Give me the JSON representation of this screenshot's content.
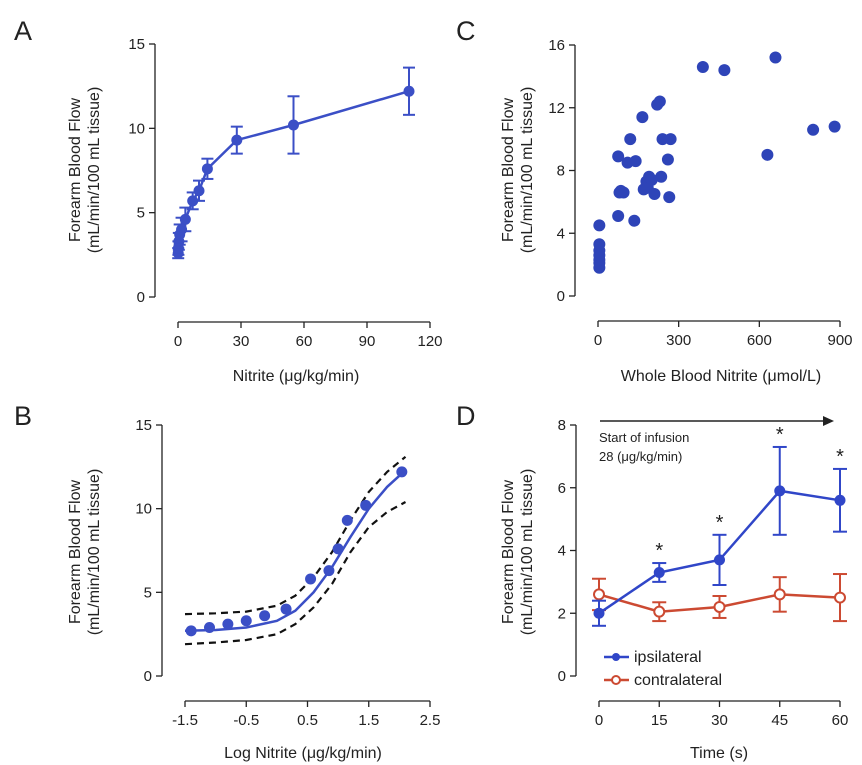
{
  "chart_data": [
    {
      "panel": "A",
      "type": "line",
      "xlabel": "Nitrite (μg/kg/min)",
      "ylabel": "Forearm Blood Flow\n(mL/min/100 mL tissue)",
      "xlim": [
        0,
        120
      ],
      "ylim": [
        0,
        15
      ],
      "xticks": [
        0,
        30,
        60,
        90,
        120
      ],
      "yticks": [
        0,
        5,
        10,
        15
      ],
      "tick_labels_x": [
        "0",
        "30",
        "60",
        "90",
        "120"
      ],
      "tick_labels_y": [
        "0",
        "5",
        "10",
        "15"
      ],
      "color": "#3b4fc6",
      "x": [
        0.1,
        0.2,
        0.4,
        0.8,
        1.7,
        3.5,
        7,
        10,
        14,
        28,
        55,
        110
      ],
      "y": [
        2.6,
        2.9,
        3.3,
        3.7,
        4.0,
        4.6,
        5.7,
        6.3,
        7.6,
        9.3,
        10.2,
        12.2
      ],
      "err": [
        0.3,
        0.4,
        0.5,
        0.6,
        0.7,
        0.7,
        0.5,
        0.6,
        0.6,
        0.8,
        1.7,
        1.4
      ]
    },
    {
      "panel": "B",
      "type": "line",
      "xlabel": "Log Nitrite (μg/kg/min)",
      "ylabel": "Forearm Blood Flow\n(mL/min/100 mL tissue)",
      "xlim": [
        -1.5,
        2.5
      ],
      "ylim": [
        0,
        15
      ],
      "xticks": [
        -1.5,
        -0.5,
        0.5,
        1.5,
        2.5
      ],
      "yticks": [
        0,
        5,
        10,
        15
      ],
      "tick_labels_x": [
        "-1.5",
        "-0.5",
        "0.5",
        "1.5",
        "2.5"
      ],
      "tick_labels_y": [
        "0",
        "5",
        "10",
        "15"
      ],
      "color": "#3b4fc6",
      "points_x": [
        -1.4,
        -1.1,
        -0.8,
        -0.5,
        -0.2,
        0.15,
        0.55,
        0.85,
        1.0,
        1.15,
        1.45,
        2.04
      ],
      "points_y": [
        2.7,
        2.9,
        3.1,
        3.3,
        3.6,
        4.0,
        5.8,
        6.3,
        7.6,
        9.3,
        10.2,
        12.2
      ],
      "fit_x": [
        -1.5,
        -1.0,
        -0.5,
        0.0,
        0.3,
        0.6,
        0.9,
        1.2,
        1.5,
        1.8,
        2.1
      ],
      "fit_y": [
        2.7,
        2.75,
        2.9,
        3.3,
        3.9,
        5.0,
        6.5,
        8.3,
        10.0,
        11.3,
        12.3
      ],
      "ci_upper_y": [
        3.7,
        3.75,
        3.85,
        4.2,
        4.8,
        5.9,
        7.4,
        9.3,
        11.0,
        12.2,
        13.1
      ],
      "ci_lower_y": [
        1.9,
        2.0,
        2.15,
        2.5,
        3.1,
        4.1,
        5.5,
        7.4,
        8.9,
        9.8,
        10.4
      ]
    },
    {
      "panel": "C",
      "type": "scatter",
      "xlabel": "Whole Blood Nitrite (μmol/L)",
      "ylabel": "Forearm Blood Flow\n(mL/min/100 mL tissue)",
      "xlim": [
        0,
        900
      ],
      "ylim": [
        0,
        16
      ],
      "xticks": [
        0,
        300,
        600,
        900
      ],
      "yticks": [
        0,
        4,
        8,
        12,
        16
      ],
      "tick_labels_x": [
        "0",
        "300",
        "600",
        "900"
      ],
      "tick_labels_y": [
        "0",
        "4",
        "8",
        "12",
        "16"
      ],
      "color": "#2e44b8",
      "x": [
        5,
        5,
        5,
        5,
        5,
        5,
        5,
        75,
        75,
        80,
        85,
        95,
        110,
        120,
        135,
        140,
        165,
        170,
        180,
        185,
        190,
        200,
        210,
        220,
        230,
        235,
        240,
        260,
        265,
        270,
        390,
        470,
        630,
        660,
        800,
        880
      ],
      "y": [
        1.8,
        2.1,
        2.3,
        2.6,
        2.9,
        3.3,
        4.5,
        8.9,
        5.1,
        6.6,
        6.7,
        6.6,
        8.5,
        10.0,
        4.8,
        8.6,
        11.4,
        6.8,
        7.3,
        6.9,
        7.6,
        7.4,
        6.5,
        12.2,
        12.4,
        7.6,
        10.0,
        8.7,
        6.3,
        10.0,
        14.6,
        14.4,
        9.0,
        15.2,
        10.6,
        10.8
      ]
    },
    {
      "panel": "D",
      "type": "line",
      "xlabel": "Time (s)",
      "ylabel": "Forearm Blood Flow\n(mL/min/100 mL tissue)",
      "xlim": [
        0,
        60
      ],
      "ylim": [
        0,
        8
      ],
      "xticks": [
        0,
        15,
        30,
        45,
        60
      ],
      "yticks": [
        0,
        2,
        4,
        6,
        8
      ],
      "tick_labels_x": [
        "0",
        "15",
        "30",
        "45",
        "60"
      ],
      "tick_labels_y": [
        "0",
        "2",
        "4",
        "6",
        "8"
      ],
      "annotation": [
        "Start of infusion",
        "28 (μg/kg/min)"
      ],
      "significance_marker": "*",
      "series": [
        {
          "name": "ipsilateral",
          "color": "#3046c8",
          "x": [
            0,
            15,
            30,
            45,
            60
          ],
          "y": [
            2.0,
            3.3,
            3.7,
            5.9,
            5.6
          ],
          "err": [
            0.4,
            0.3,
            0.8,
            1.4,
            1.0
          ],
          "significant": [
            false,
            true,
            true,
            true,
            true
          ]
        },
        {
          "name": "contralateral",
          "color": "#cc4a32",
          "x": [
            0,
            15,
            30,
            45,
            60
          ],
          "y": [
            2.6,
            2.05,
            2.2,
            2.6,
            2.5
          ],
          "err": [
            0.5,
            0.3,
            0.35,
            0.55,
            0.75
          ],
          "significant": [
            false,
            false,
            false,
            false,
            false
          ]
        }
      ]
    }
  ],
  "panels": {
    "a": "A",
    "b": "B",
    "c": "C",
    "d": "D"
  }
}
